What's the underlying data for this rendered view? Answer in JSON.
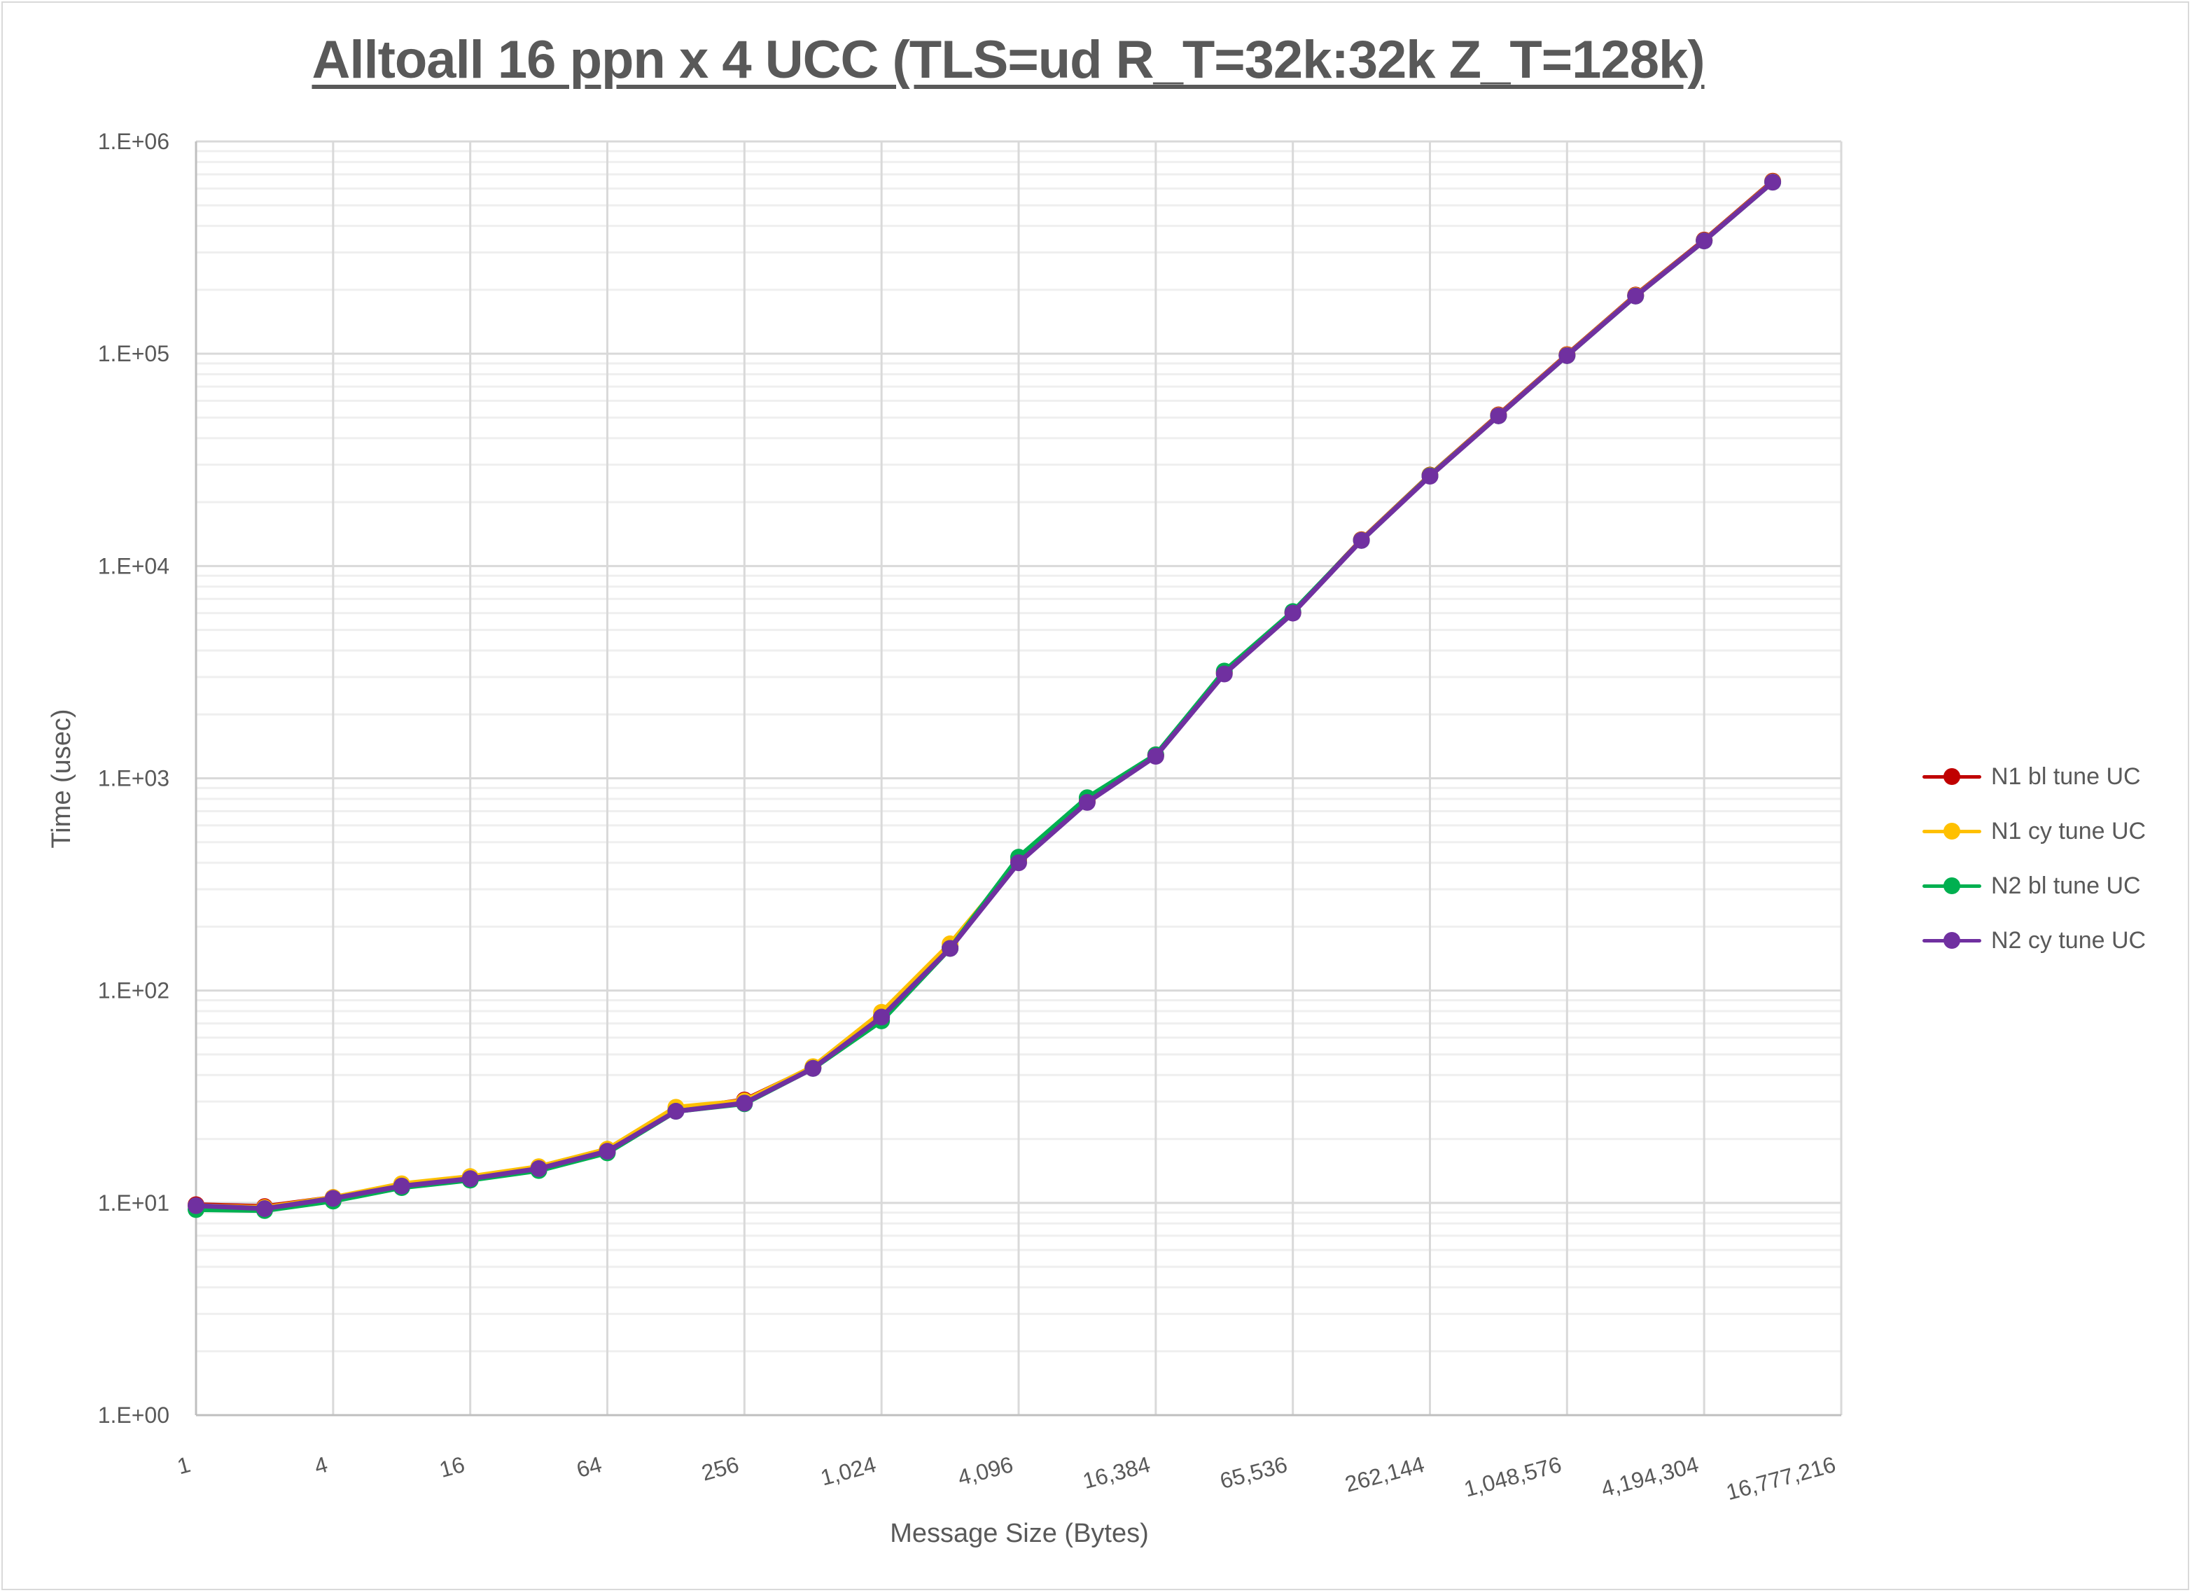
{
  "chart_data": {
    "type": "line",
    "title": "Alltoall 16 ppn x 4 UCC (TLS=ud R_T=32k:32k Z_T=128k)",
    "xlabel": "Message Size (Bytes)",
    "ylabel": "Time (usec)",
    "xscale": "log2",
    "yscale": "log10",
    "ylim": [
      1,
      1000000
    ],
    "xlim": [
      1,
      16777216
    ],
    "grid": true,
    "legend_position": "right",
    "x_tick_labels": [
      "1",
      "4",
      "16",
      "64",
      "256",
      "1,024",
      "4,096",
      "16,384",
      "65,536",
      "262,144",
      "1,048,576",
      "4,194,304",
      "16,777,216"
    ],
    "y_tick_labels": [
      "1.E+00",
      "1.E+01",
      "1.E+02",
      "1.E+03",
      "1.E+04",
      "1.E+05",
      "1.E+06"
    ],
    "x": [
      1,
      2,
      4,
      8,
      16,
      32,
      64,
      128,
      256,
      512,
      1024,
      2048,
      4096,
      8192,
      16384,
      32768,
      65536,
      131072,
      262144,
      524288,
      1048576,
      2097152,
      4194304,
      8388608
    ],
    "series": [
      {
        "name": "N1 bl tune UC",
        "color": "#c00000",
        "values": [
          9.8,
          9.6,
          10.6,
          12.2,
          13.2,
          14.7,
          17.8,
          27.5,
          30.5,
          43.5,
          76,
          160,
          410,
          780,
          1290,
          3150,
          6050,
          13300,
          26800,
          51500,
          99000,
          189000,
          343000,
          650000
        ]
      },
      {
        "name": "N1 cy tune UC",
        "color": "#ffc000",
        "values": [
          9.7,
          9.5,
          10.6,
          12.3,
          13.3,
          14.8,
          17.9,
          28.2,
          30.2,
          43.8,
          79,
          166,
          405,
          775,
          1280,
          3120,
          6020,
          13250,
          26700,
          51200,
          98500,
          188000,
          341000,
          646000
        ]
      },
      {
        "name": "N2 bl tune UC",
        "color": "#00b050",
        "values": [
          9.3,
          9.2,
          10.2,
          11.8,
          12.8,
          14.2,
          17.2,
          27.0,
          29.3,
          43.0,
          72,
          158,
          425,
          810,
          1290,
          3200,
          6100,
          13200,
          26600,
          51000,
          98000,
          187000,
          340000,
          643000
        ]
      },
      {
        "name": "N2 cy tune UC",
        "color": "#7030a0",
        "values": [
          9.7,
          9.4,
          10.5,
          12.0,
          13.0,
          14.5,
          17.5,
          27.0,
          29.5,
          43.0,
          75,
          158,
          400,
          770,
          1270,
          3100,
          6000,
          13200,
          26500,
          51000,
          98000,
          187000,
          340000,
          643000
        ]
      }
    ]
  }
}
